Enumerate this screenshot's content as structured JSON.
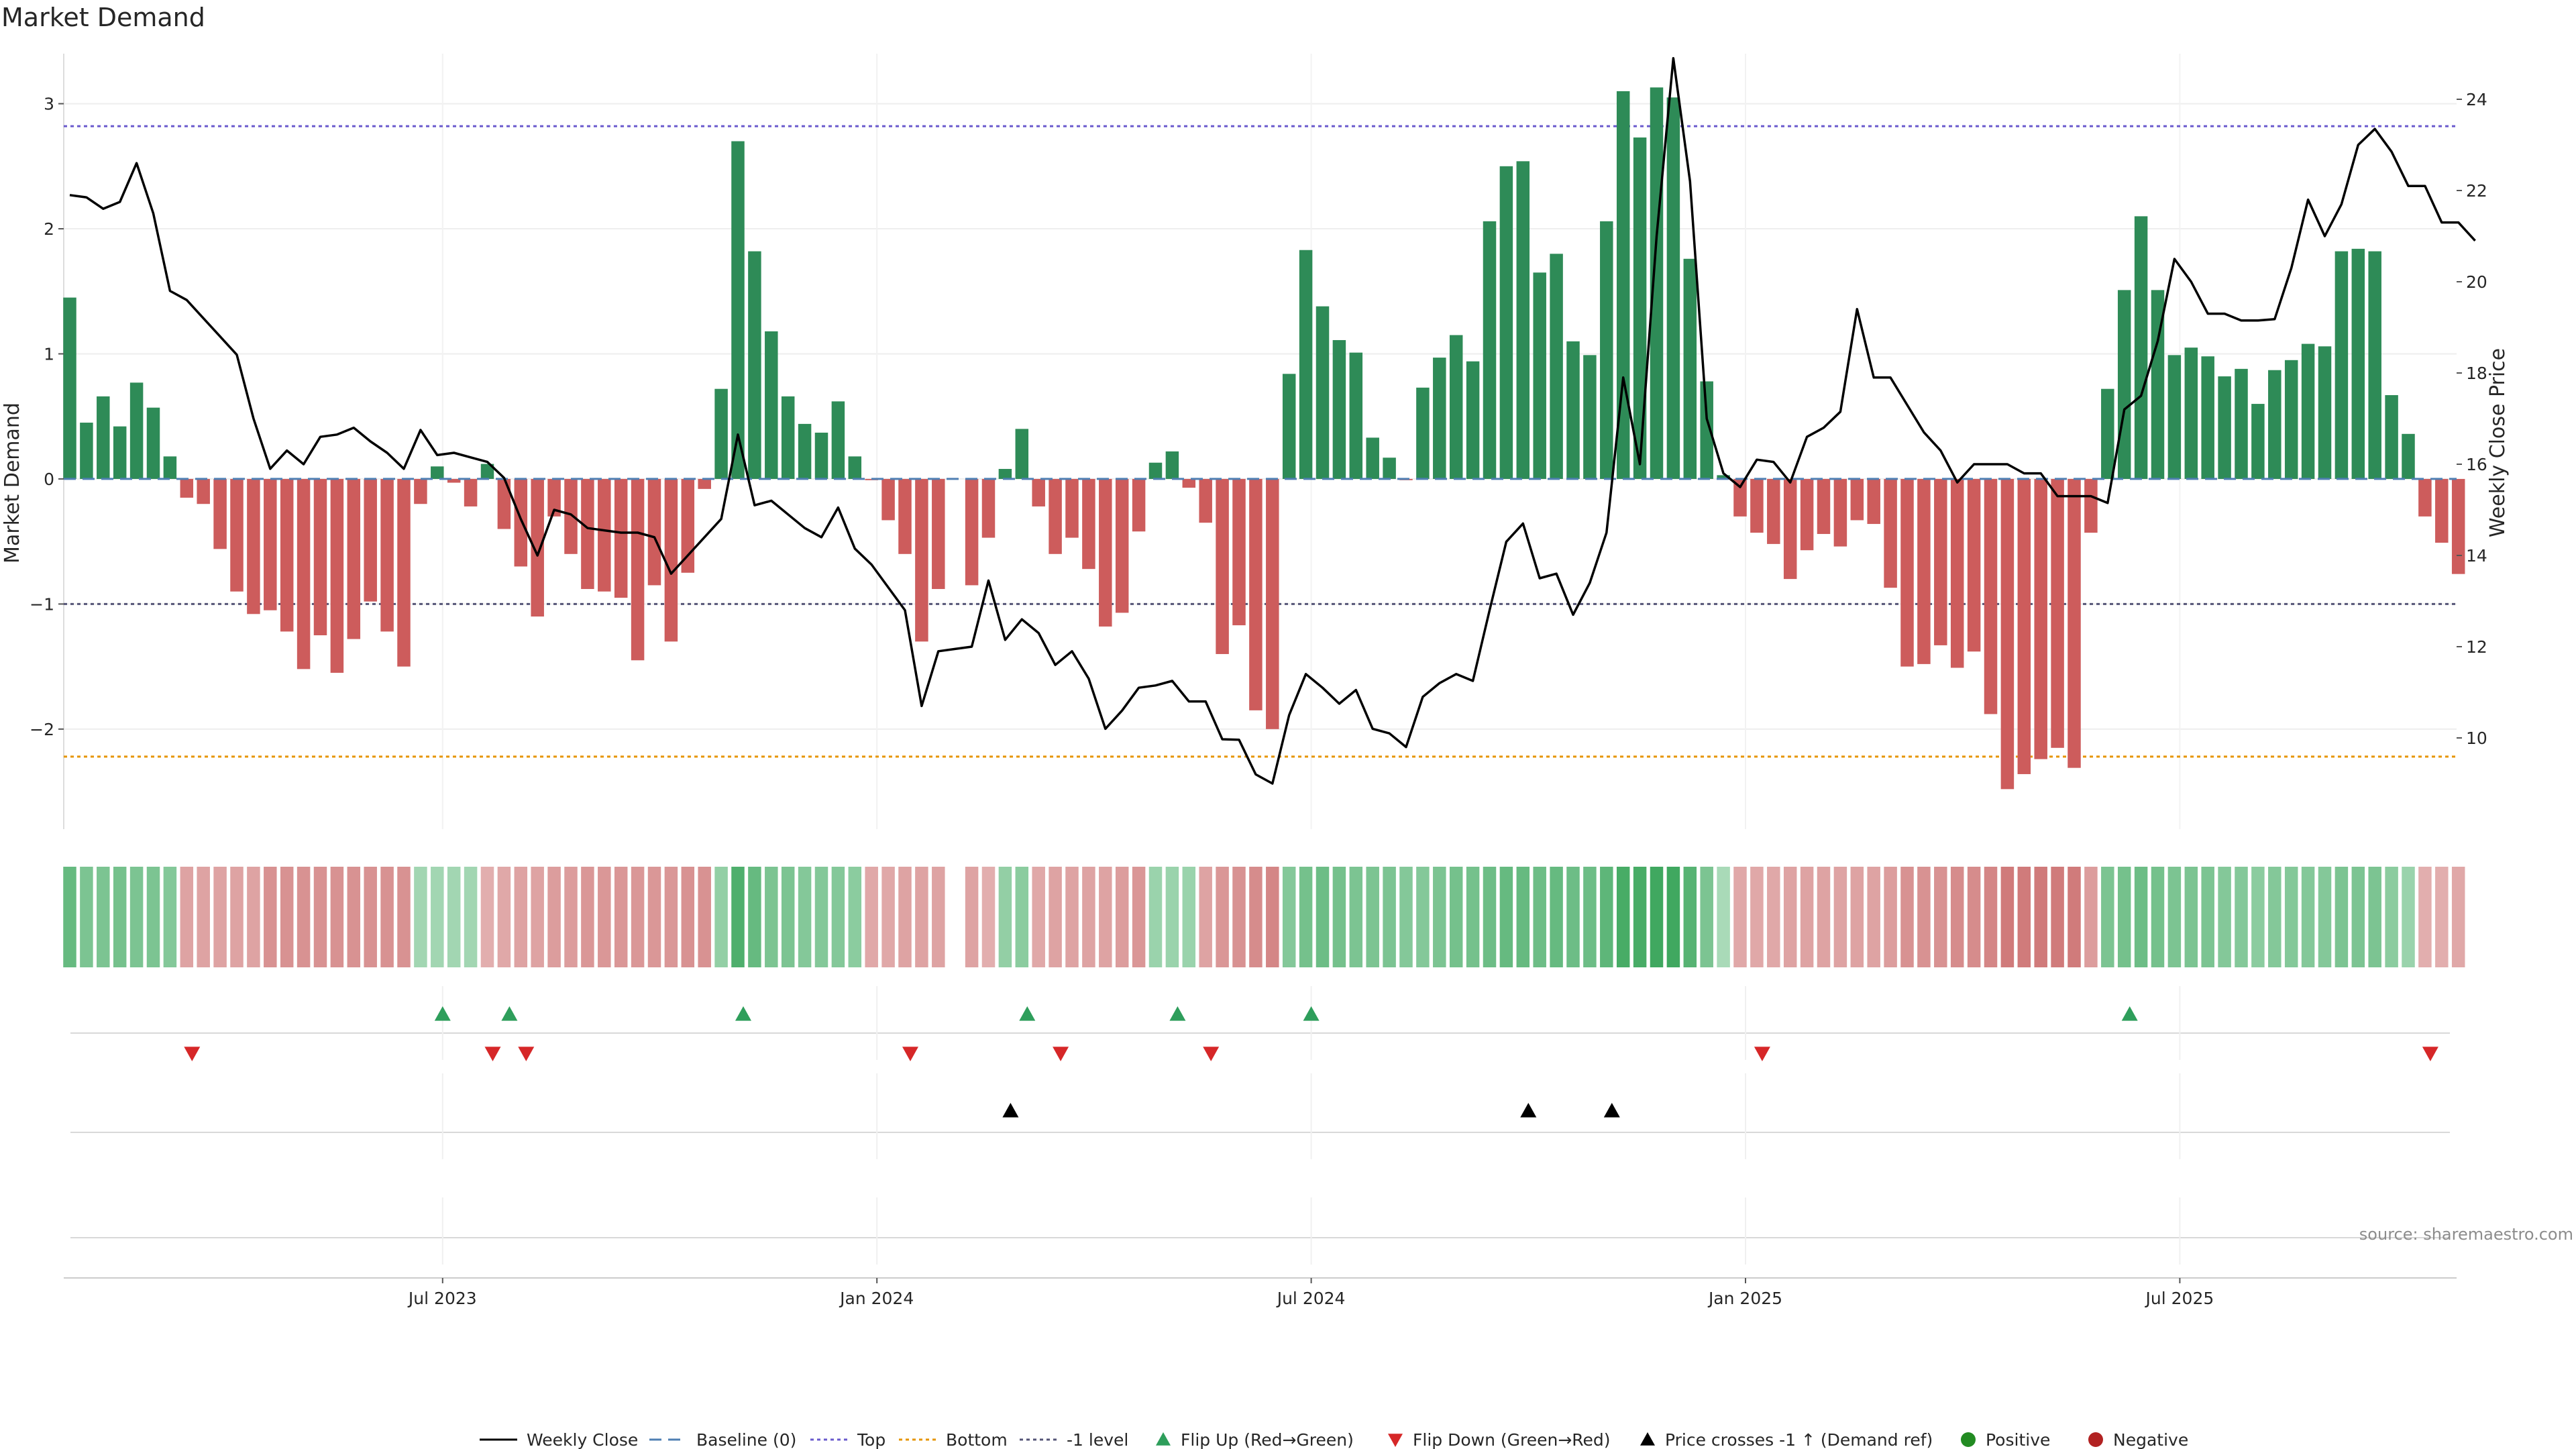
{
  "chart_data": {
    "type": "bar",
    "title": "Market Demand",
    "ylabel_left": "Market Demand",
    "ylabel_right": "Weekly Close Price",
    "ylim_left": [
      -2.8,
      3.4
    ],
    "ylim_right": [
      8.0,
      25.0
    ],
    "left_ticks": [
      3,
      2,
      1,
      0,
      -1,
      -2
    ],
    "left_tick_labels": [
      "3",
      "2",
      "1",
      "0",
      "−1",
      "−2"
    ],
    "right_ticks": [
      24,
      22,
      20,
      18,
      16,
      14,
      12,
      10
    ],
    "right_tick_labels": [
      "24",
      "22",
      "20",
      "18",
      "16",
      "14",
      "12",
      "10"
    ],
    "reference_lines": {
      "top": 2.82,
      "bottom": -2.22,
      "minus_one": -1.0,
      "baseline": 0
    },
    "x_tick_labels": [
      "Jul 2023",
      "Jan 2024",
      "Jul 2024",
      "Jan 2025",
      "Jul 2025"
    ],
    "x_tick_index": [
      22,
      48,
      74,
      100,
      126
    ],
    "demand": [
      1.45,
      0.45,
      0.66,
      0.42,
      0.77,
      0.57,
      0.18,
      -0.15,
      -0.2,
      -0.56,
      -0.9,
      -1.08,
      -1.05,
      -1.22,
      -1.52,
      -1.25,
      -1.55,
      -1.28,
      -0.98,
      -1.22,
      -1.5,
      -0.2,
      0.1,
      -0.03,
      -0.22,
      0.12,
      -0.4,
      -0.7,
      -1.1,
      -0.3,
      -0.6,
      -0.88,
      -0.9,
      -0.95,
      -1.45,
      -0.85,
      -1.3,
      -0.75,
      -0.08,
      0.72,
      2.7,
      1.82,
      1.18,
      0.66,
      0.44,
      0.37,
      0.62,
      0.18,
      -0.01,
      -0.33,
      -0.6,
      -1.3,
      -0.88,
      null,
      -0.85,
      -0.47,
      0.08,
      0.4,
      -0.22,
      -0.6,
      -0.47,
      -0.72,
      -1.18,
      -1.07,
      -0.42,
      0.13,
      0.22,
      -0.07,
      -0.35,
      -1.4,
      -1.17,
      -1.85,
      -2.0,
      0.84,
      1.83,
      1.38,
      1.11,
      1.01,
      0.33,
      0.17,
      -0.01,
      0.73,
      0.97,
      1.15,
      0.94,
      2.06,
      2.5,
      2.54,
      1.65,
      1.8,
      1.1,
      0.99,
      2.06,
      3.1,
      2.73,
      3.13,
      3.05,
      1.76,
      0.78,
      0.03,
      -0.3,
      -0.43,
      -0.52,
      -0.8,
      -0.57,
      -0.44,
      -0.54,
      -0.33,
      -0.36,
      -0.87,
      -1.5,
      -1.48,
      -1.33,
      -1.51,
      -1.38,
      -1.88,
      -2.48,
      -2.36,
      -2.24,
      -2.15,
      -2.31,
      -0.43,
      0.72,
      1.51,
      2.1,
      1.51,
      0.99,
      1.05,
      0.98,
      0.82,
      0.88,
      0.6,
      0.87,
      0.95,
      1.08,
      1.06,
      1.82,
      1.84,
      1.82,
      0.67,
      0.36,
      -0.3,
      -0.51,
      -0.76
    ],
    "weekly_close": [
      21.9,
      21.85,
      21.6,
      21.75,
      22.6,
      21.5,
      19.8,
      19.6,
      19.2,
      18.8,
      18.4,
      17.0,
      15.9,
      16.3,
      16.0,
      16.6,
      16.65,
      16.8,
      16.5,
      16.25,
      15.9,
      16.75,
      16.2,
      16.25,
      16.15,
      16.05,
      15.7,
      14.8,
      14.0,
      15.0,
      14.9,
      14.6,
      14.55,
      14.5,
      14.5,
      14.4,
      13.6,
      14.0,
      14.4,
      14.8,
      16.65,
      15.1,
      15.2,
      14.9,
      14.6,
      14.4,
      15.05,
      14.15,
      13.8,
      13.3,
      12.8,
      10.7,
      11.9,
      11.95,
      12.0,
      13.45,
      12.15,
      12.6,
      12.3,
      11.6,
      11.9,
      11.3,
      10.2,
      10.6,
      11.1,
      11.15,
      11.25,
      10.8,
      10.8,
      9.97,
      9.96,
      9.2,
      9.0,
      10.5,
      11.4,
      11.1,
      10.75,
      11.05,
      10.2,
      10.1,
      9.8,
      10.9,
      11.2,
      11.4,
      11.25,
      12.8,
      14.3,
      14.7,
      13.5,
      13.6,
      12.7,
      13.4,
      14.5,
      17.9,
      16.0,
      21.0,
      24.9,
      22.2,
      17.0,
      15.8,
      15.5,
      16.1,
      16.05,
      15.6,
      16.6,
      16.8,
      17.15,
      19.4,
      17.9,
      17.9,
      17.3,
      16.7,
      16.3,
      15.6,
      16.0,
      16.0,
      16.0,
      15.8,
      15.8,
      15.3,
      15.3,
      15.3,
      15.15,
      17.2,
      17.5,
      18.7,
      20.5,
      20.0,
      19.3,
      19.3,
      19.15,
      19.15,
      19.18,
      20.3,
      21.8,
      21.0,
      21.7,
      23.0,
      23.35,
      22.85,
      22.1,
      22.1,
      21.3,
      21.3,
      20.9
    ],
    "heat_strip": [
      0.75,
      0.6,
      0.6,
      0.65,
      0.6,
      0.6,
      0.55,
      -0.45,
      -0.45,
      -0.45,
      -0.45,
      -0.45,
      -0.6,
      -0.6,
      -0.6,
      -0.6,
      -0.6,
      -0.6,
      -0.6,
      -0.6,
      -0.6,
      0.35,
      0.35,
      0.35,
      0.35,
      -0.35,
      -0.4,
      -0.45,
      -0.45,
      -0.5,
      -0.5,
      -0.55,
      -0.55,
      -0.55,
      -0.55,
      -0.55,
      -0.55,
      -0.6,
      -0.6,
      0.45,
      0.9,
      0.75,
      0.6,
      0.6,
      0.55,
      0.55,
      0.55,
      0.5,
      -0.4,
      -0.4,
      -0.45,
      -0.45,
      -0.45,
      null,
      -0.45,
      -0.35,
      0.45,
      0.5,
      -0.4,
      -0.45,
      -0.45,
      -0.45,
      -0.45,
      -0.5,
      -0.55,
      0.4,
      0.4,
      0.4,
      -0.45,
      -0.55,
      -0.6,
      -0.65,
      -0.7,
      0.55,
      0.65,
      0.7,
      0.65,
      0.6,
      0.6,
      0.6,
      0.55,
      0.55,
      0.6,
      0.65,
      0.65,
      0.7,
      0.75,
      0.75,
      0.7,
      0.75,
      0.7,
      0.7,
      0.8,
      0.95,
      0.95,
      1.0,
      1.0,
      0.85,
      0.6,
      0.3,
      -0.4,
      -0.4,
      -0.4,
      -0.45,
      -0.45,
      -0.45,
      -0.45,
      -0.45,
      -0.45,
      -0.5,
      -0.6,
      -0.6,
      -0.6,
      -0.65,
      -0.65,
      -0.7,
      -0.8,
      -0.8,
      -0.8,
      -0.8,
      -0.8,
      -0.5,
      0.6,
      0.65,
      0.7,
      0.65,
      0.6,
      0.6,
      0.6,
      0.55,
      0.55,
      0.5,
      0.55,
      0.55,
      0.55,
      0.55,
      0.6,
      0.6,
      0.6,
      0.5,
      0.4,
      -0.35,
      -0.35,
      -0.4
    ],
    "flip_up_index": [
      22,
      26,
      40,
      57,
      66,
      74,
      123
    ],
    "flip_down_index": [
      7,
      25,
      27,
      50,
      59,
      68,
      101,
      141
    ],
    "price_cross_index": [
      56,
      87,
      92
    ],
    "legend": [
      "Weekly Close",
      "Baseline (0)",
      "Top",
      "Bottom",
      "-1 level",
      "Flip Up (Red→Green)",
      "Flip Down (Green→Red)",
      "Price crosses -1 ↑ (Demand ref)",
      "Positive",
      "Negative"
    ],
    "source": "source: sharemaestro.com",
    "colors": {
      "positive": "#2e8b57",
      "negative": "#cd5c5c",
      "price": "#000000",
      "top": "#6a5acd",
      "bottom": "#e69500",
      "minus_one": "#555577",
      "flip_up": "#2e9e5b",
      "flip_down": "#d62728",
      "marker_pos": "#228b22",
      "marker_neg": "#b22222"
    }
  }
}
